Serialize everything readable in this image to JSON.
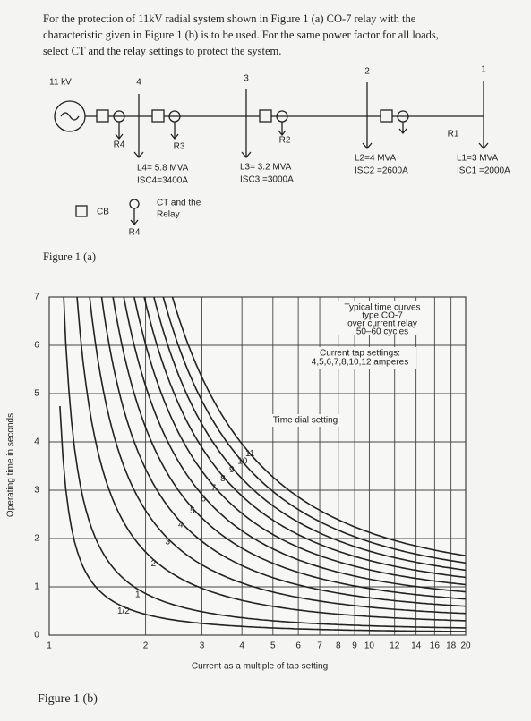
{
  "problem_lines": [
    "For the protection of 11kV radial system shown in Figure 1 (a) CO-7 relay with the",
    "characteristic given in Figure 1 (b) is to be used. For the same power factor for all loads,",
    "select CT and the relay settings to protect the system."
  ],
  "figure_a": {
    "caption": "Figure 1 (a)",
    "source": "11 kV",
    "bus_labels": [
      "4",
      "3",
      "2",
      "1"
    ],
    "relay_labels": [
      "R4",
      "R3",
      "R2",
      "R1"
    ],
    "loads": [
      {
        "load": "L4= 5.8 MVA",
        "isc": "ISC4=3400A"
      },
      {
        "load": "L3= 3.2 MVA",
        "isc": "ISC3 =3000A"
      },
      {
        "load": "L2=4 MVA",
        "isc": "ISC2 =2600A"
      },
      {
        "load": "L1=3 MVA",
        "isc": "ISC1 =2000A"
      }
    ],
    "legend_cb": "CB",
    "legend_ct": [
      "CT and the",
      "Relay"
    ],
    "legend_relay": "R4"
  },
  "chart_data": {
    "type": "time_curves",
    "caption": "Figure 1 (b)",
    "xlabel": "Current as a multiple of tap setting",
    "ylabel": "Operating time in seconds",
    "xlim": [
      1,
      20
    ],
    "ylim": [
      0,
      7
    ],
    "log_x": true,
    "grid": true,
    "xticks": [
      1,
      2,
      3,
      4,
      5,
      6,
      7,
      8,
      9,
      10,
      12,
      14,
      16,
      18,
      20
    ],
    "yticks": [
      0,
      1,
      2,
      3,
      4,
      5,
      6,
      7
    ],
    "dial_settings": [
      {
        "value": 0.5,
        "label": "1/2"
      },
      1,
      2,
      3,
      4,
      5,
      6,
      7,
      8,
      9,
      10,
      11
    ],
    "annotations": [
      "Typical time curves",
      "type CO-7",
      "over current relay",
      "50–60 cycles",
      "Current tap settings:",
      "4,5,6,7,8,10,12 amperes",
      "Time dial setting"
    ],
    "color": "#222"
  }
}
